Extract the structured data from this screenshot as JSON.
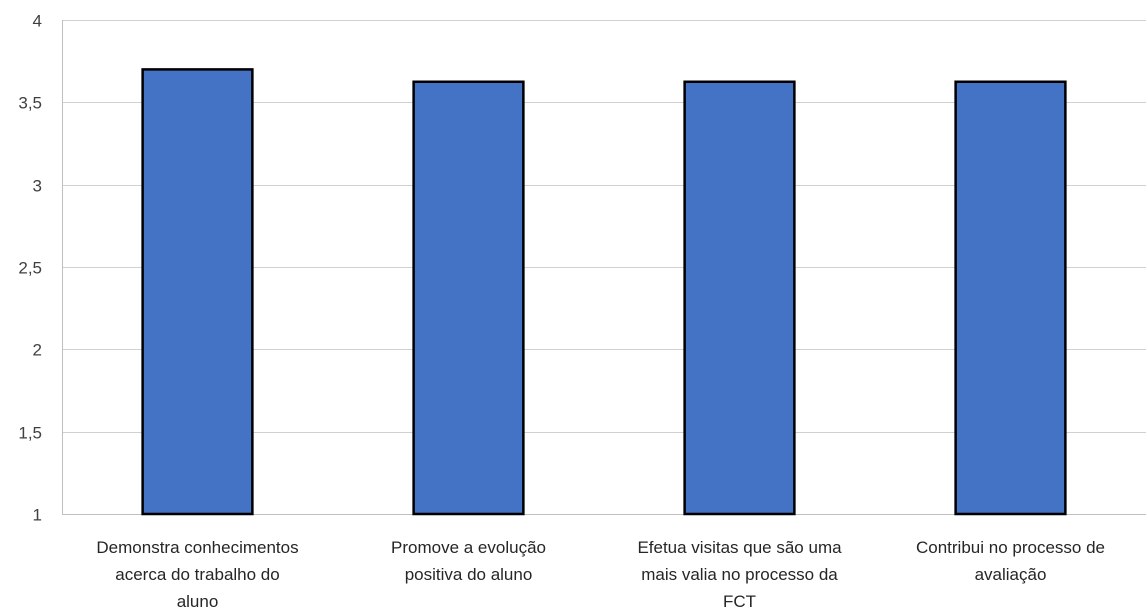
{
  "chart_data": {
    "type": "bar",
    "categories": [
      [
        "Demonstra conhecimentos",
        "acerca do trabalho do",
        "aluno"
      ],
      [
        "Promove a evolução",
        "positiva do aluno"
      ],
      [
        "Efetua visitas que são uma",
        "mais valia no processo da",
        "FCT"
      ],
      [
        "Contribui no processo de",
        "avaliação"
      ]
    ],
    "values": [
      3.7,
      3.625,
      3.625,
      3.625
    ],
    "ylim": [
      1,
      4
    ],
    "yticks": [
      1,
      1.5,
      2,
      2.5,
      3,
      3.5,
      4
    ],
    "ytick_labels": [
      "1",
      "1,5",
      "2",
      "2,5",
      "3",
      "3,5",
      "4"
    ],
    "grid": true,
    "bar_color": "#4472c4",
    "bar_edge_color": "#000000"
  }
}
